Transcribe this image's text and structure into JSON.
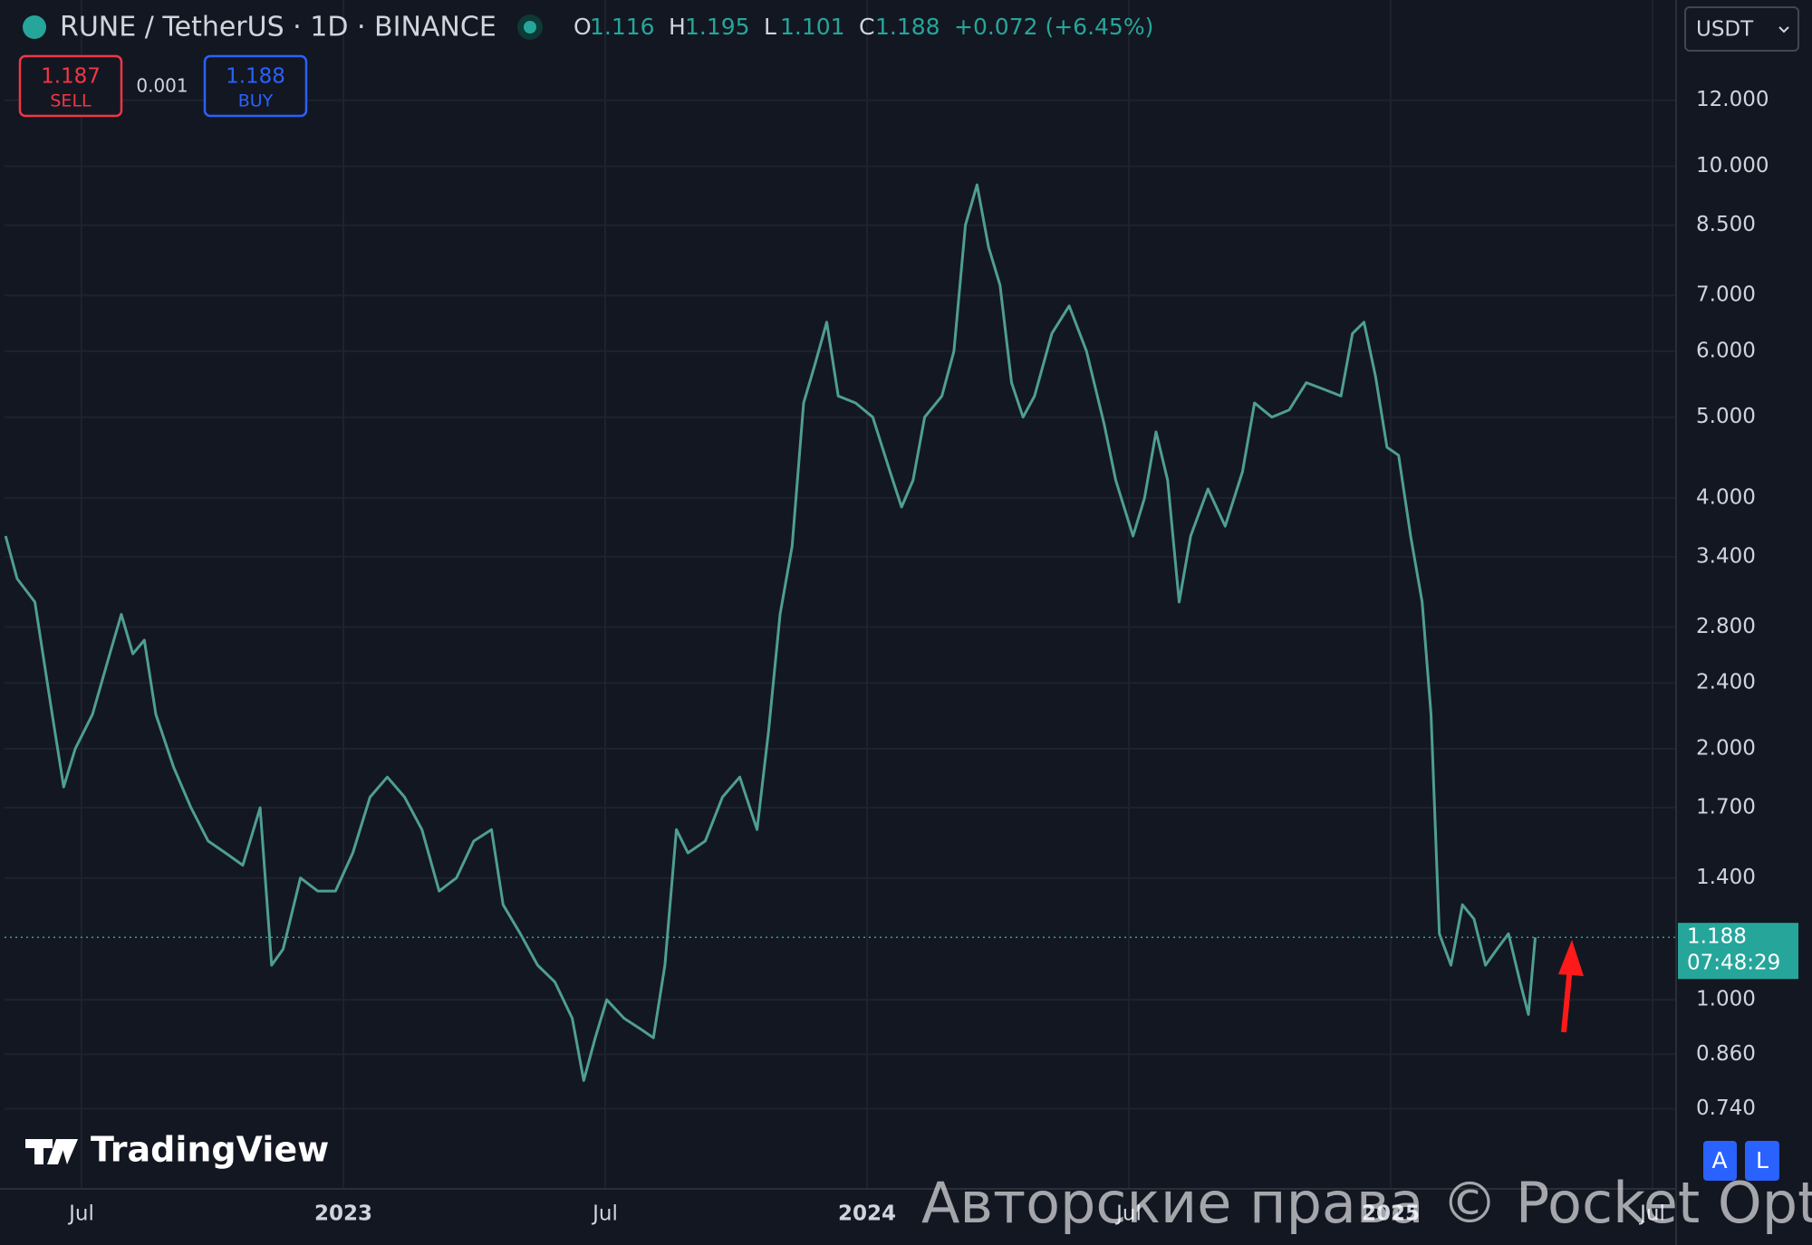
{
  "header": {
    "symbol": "RUNE / TetherUS · 1D · BINANCE",
    "ohlc": [
      {
        "label": "O",
        "value": 1.116
      },
      {
        "label": "H",
        "value": 1.195
      },
      {
        "label": "L",
        "value": 1.101
      },
      {
        "label": "C",
        "value": 1.188
      }
    ],
    "change": "+0.072 (+6.45%)"
  },
  "trade": {
    "sell_price": 1.187,
    "sell_label": "SELL",
    "spread": 0.001,
    "buy_price": 1.188,
    "buy_label": "BUY"
  },
  "currency": "USDT",
  "buttons": [
    "A",
    "L"
  ],
  "logo": "TradingView",
  "watermark": "Авторские права © Pocket Option",
  "chart_data": {
    "type": "line",
    "log_scale": true,
    "grid": true,
    "color": "#4f9e93",
    "current_price": 1.188,
    "countdown": "07:48:29",
    "xlim": [
      2022.353,
      2025.545
    ],
    "xticks": [
      {
        "value": 2022.5,
        "label": "Jul"
      },
      {
        "value": 2023,
        "label": "2023"
      },
      {
        "value": 2023.5,
        "label": "Jul"
      },
      {
        "value": 2024,
        "label": "2024"
      },
      {
        "value": 2024.5,
        "label": "Jul"
      },
      {
        "value": 2025,
        "label": "2025"
      },
      {
        "value": 2025.5,
        "label": "Jul"
      }
    ],
    "ylim": [
      0.593,
      15.83
    ],
    "yticks": [
      {
        "value": 12,
        "label": "12.000"
      },
      {
        "value": 10,
        "label": "10.000"
      },
      {
        "value": 8.5,
        "label": "8.500"
      },
      {
        "value": 7,
        "label": "7.000"
      },
      {
        "value": 6,
        "label": "6.000"
      },
      {
        "value": 5,
        "label": "5.000"
      },
      {
        "value": 4,
        "label": "4.000"
      },
      {
        "value": 3.4,
        "label": "3.400"
      },
      {
        "value": 2.8,
        "label": "2.800"
      },
      {
        "value": 2.4,
        "label": "2.400"
      },
      {
        "value": 2,
        "label": "2.000"
      },
      {
        "value": 1.7,
        "label": "1.700"
      },
      {
        "value": 1.4,
        "label": "1.400"
      },
      {
        "value": 1,
        "label": "1.000"
      },
      {
        "value": 0.86,
        "label": "0.860"
      },
      {
        "value": 0.74,
        "label": "0.740"
      }
    ],
    "x": [
      2022.355,
      2022.377,
      2022.411,
      2022.444,
      2022.466,
      2022.488,
      2022.521,
      2022.554,
      2022.576,
      2022.598,
      2022.62,
      2022.642,
      2022.676,
      2022.709,
      2022.742,
      2022.775,
      2022.808,
      2022.841,
      2022.863,
      2022.885,
      2022.918,
      2022.951,
      2022.985,
      2023.018,
      2023.051,
      2023.084,
      2023.117,
      2023.15,
      2023.183,
      2023.216,
      2023.249,
      2023.283,
      2023.305,
      2023.338,
      2023.371,
      2023.404,
      2023.437,
      2023.459,
      2023.481,
      2023.503,
      2023.536,
      2023.57,
      2023.592,
      2023.614,
      2023.636,
      2023.658,
      2023.691,
      2023.724,
      2023.757,
      2023.79,
      2023.812,
      2023.834,
      2023.857,
      2023.879,
      2023.901,
      2023.923,
      2023.945,
      2023.978,
      2024.011,
      2024.044,
      2024.066,
      2024.088,
      2024.11,
      2024.143,
      2024.166,
      2024.188,
      2024.21,
      2024.232,
      2024.254,
      2024.276,
      2024.298,
      2024.32,
      2024.353,
      2024.386,
      2024.419,
      2024.453,
      2024.475,
      2024.508,
      2024.53,
      2024.552,
      2024.574,
      2024.596,
      2024.618,
      2024.651,
      2024.684,
      2024.717,
      2024.74,
      2024.773,
      2024.806,
      2024.839,
      2024.872,
      2024.905,
      2024.927,
      2024.949,
      2024.971,
      2024.993,
      2025.015,
      2025.038,
      2025.06,
      2025.077,
      2025.093,
      2025.115,
      2025.137,
      2025.159,
      2025.181,
      2025.203,
      2025.225,
      2025.247,
      2025.263,
      2025.276
    ],
    "values": [
      3.6,
      3.2,
      3.0,
      2.2,
      1.8,
      2.0,
      2.2,
      2.6,
      2.9,
      2.6,
      2.7,
      2.2,
      1.9,
      1.7,
      1.55,
      1.5,
      1.45,
      1.7,
      1.1,
      1.15,
      1.4,
      1.35,
      1.35,
      1.5,
      1.75,
      1.85,
      1.75,
      1.6,
      1.35,
      1.4,
      1.55,
      1.6,
      1.3,
      1.2,
      1.1,
      1.05,
      0.95,
      0.8,
      0.9,
      1.0,
      0.95,
      0.92,
      0.9,
      1.1,
      1.6,
      1.5,
      1.55,
      1.75,
      1.85,
      1.6,
      2.1,
      2.9,
      3.5,
      5.2,
      5.8,
      6.5,
      5.3,
      5.2,
      5.0,
      4.3,
      3.9,
      4.2,
      5.0,
      5.3,
      6.0,
      8.5,
      9.5,
      8.0,
      7.2,
      5.5,
      5.0,
      5.3,
      6.3,
      6.8,
      6.0,
      4.9,
      4.2,
      3.6,
      4.0,
      4.8,
      4.2,
      3.0,
      3.6,
      4.1,
      3.7,
      4.3,
      5.2,
      5.0,
      5.1,
      5.5,
      5.4,
      5.3,
      6.3,
      6.5,
      5.6,
      4.6,
      4.5,
      3.6,
      3.0,
      2.2,
      1.2,
      1.1,
      1.3,
      1.25,
      1.1,
      1.15,
      1.2,
      1.05,
      0.96,
      1.188
    ]
  }
}
